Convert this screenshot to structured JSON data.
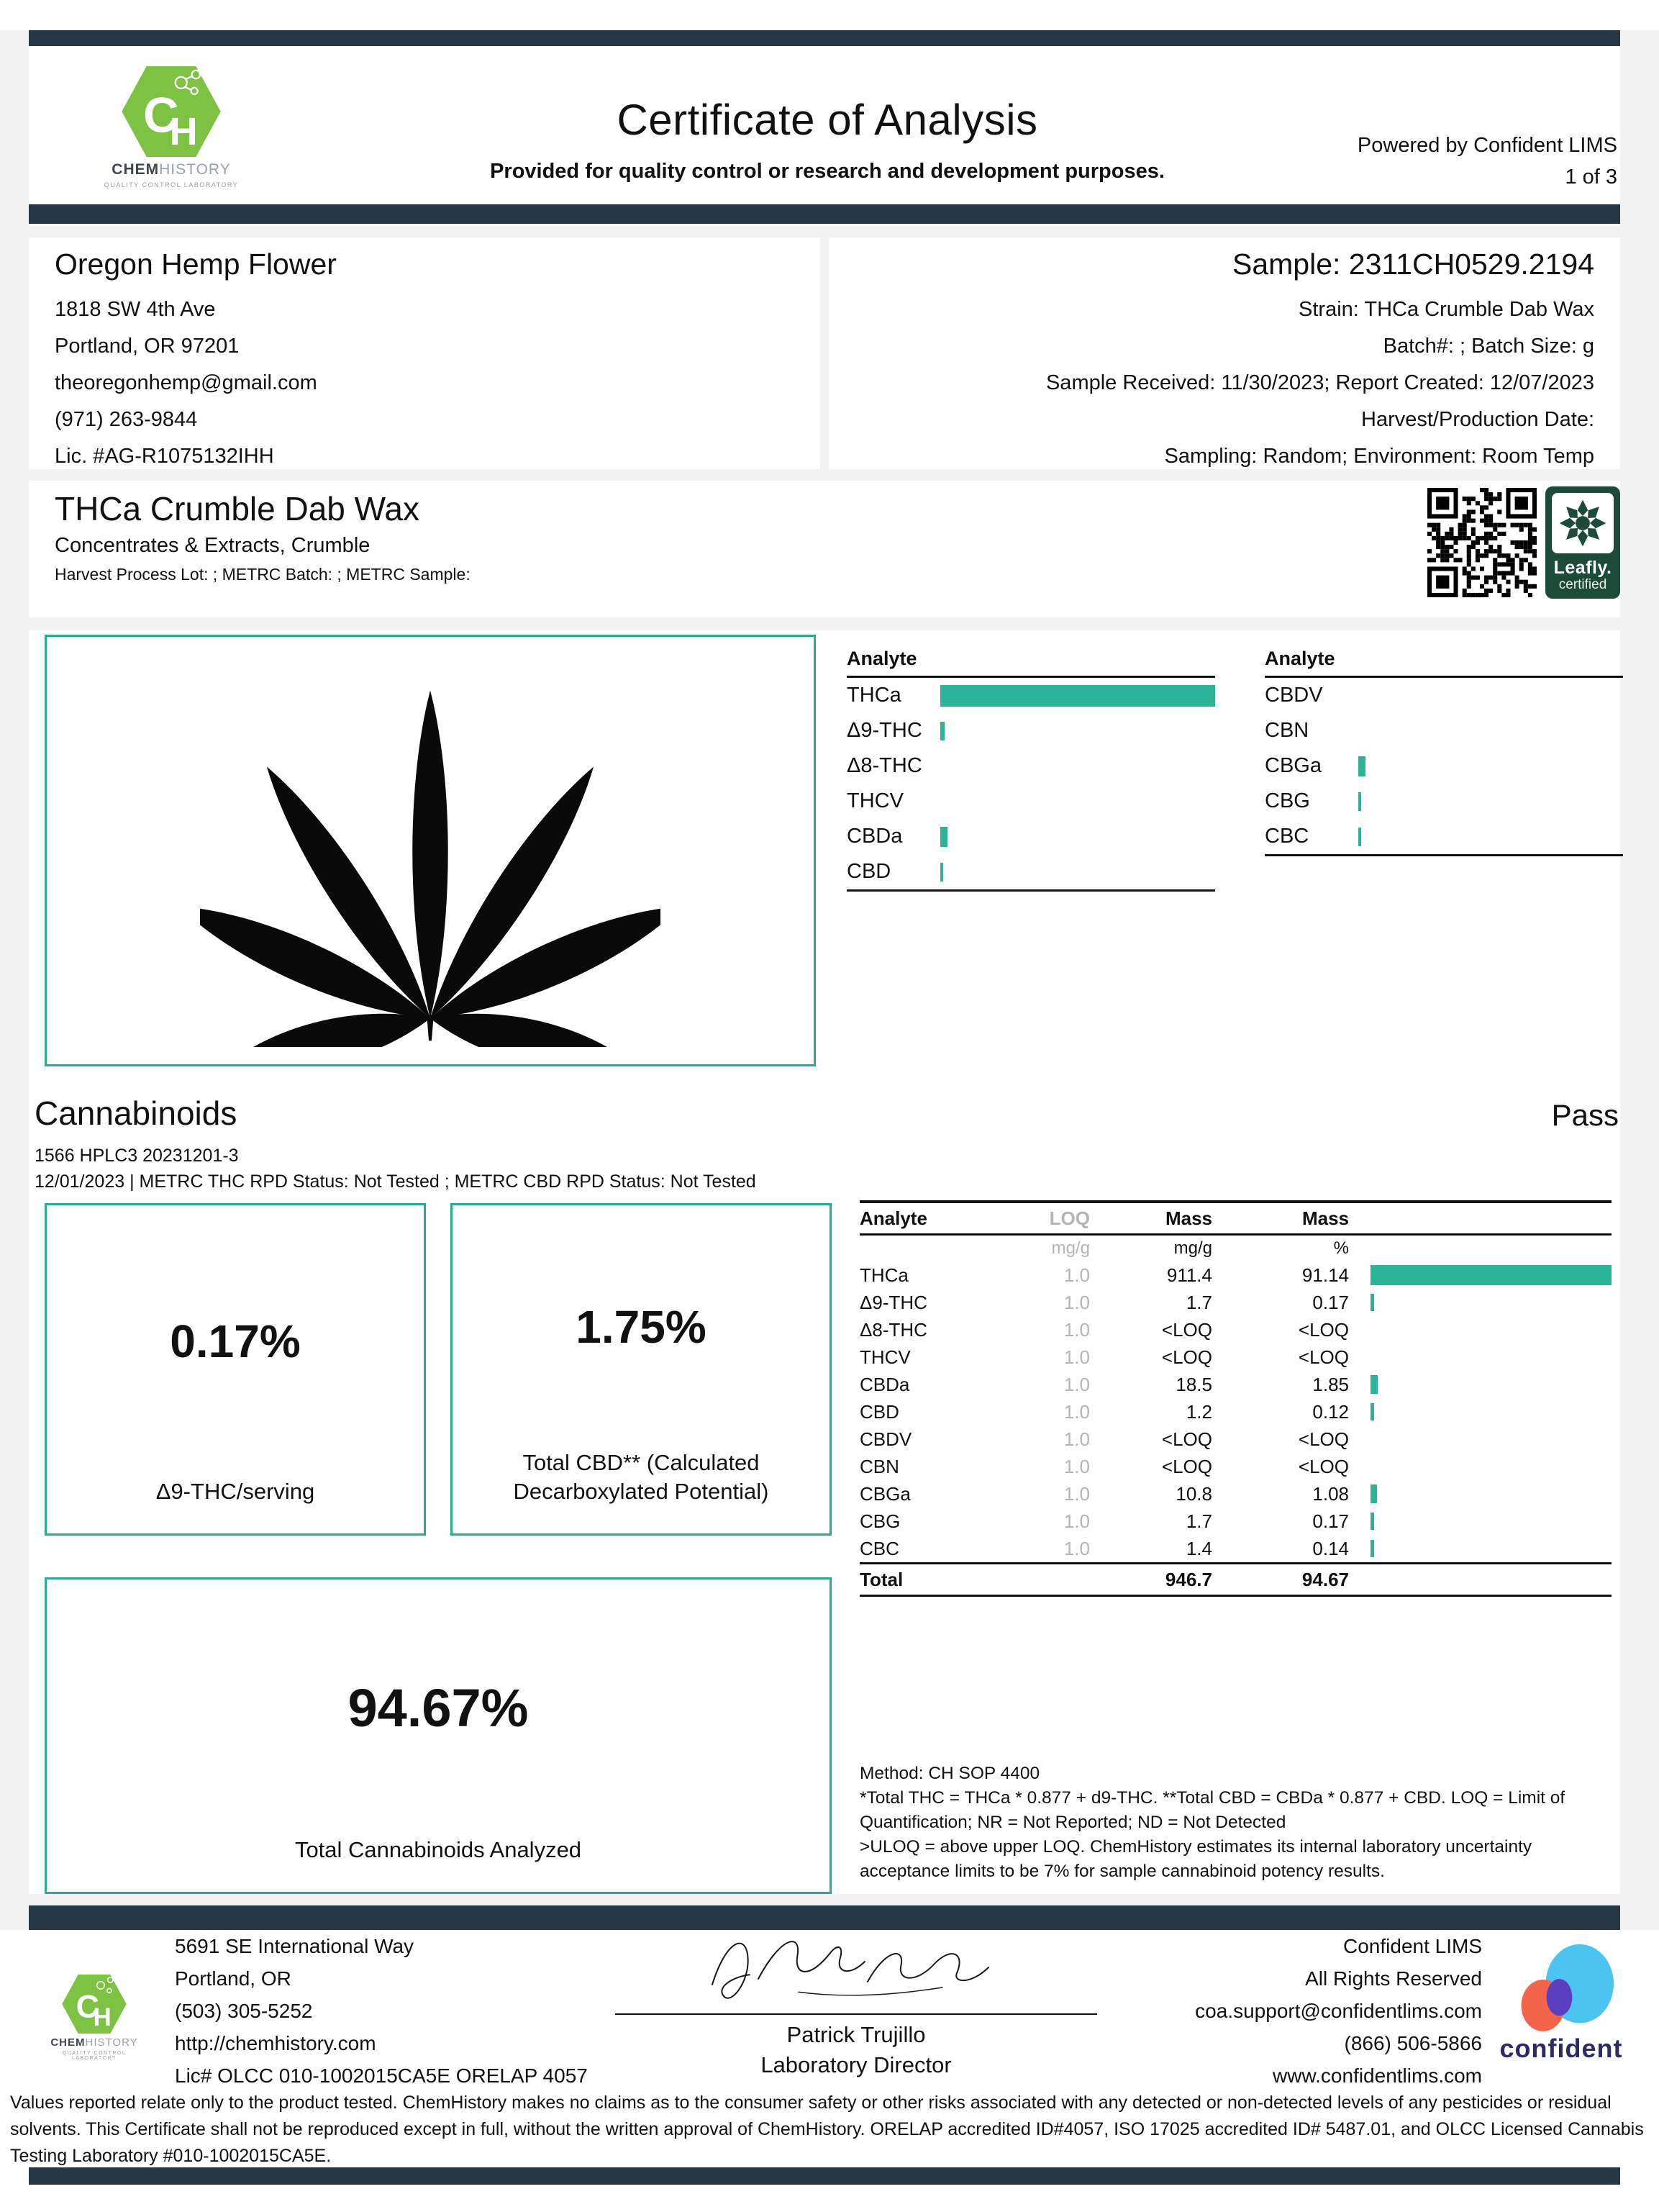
{
  "colors": {
    "accent_teal": "#2cb499",
    "navy_bar": "#273744",
    "chemhistory_green": "#7dc242",
    "leafly_green": "#1d4b39",
    "confident_blue": "#4cc4f2",
    "confident_orange": "#f2654a",
    "confident_purple": "#5b3fc0",
    "confident_navy": "#2e2a63",
    "muted_gray": "#b5b5b5"
  },
  "logo": {
    "ch": "CH",
    "chem": "CHEM",
    "history": "HISTORY",
    "tagline": "QUALITY CONTROL LABORATORY"
  },
  "header": {
    "title": "Certificate of Analysis",
    "subtitle": "Provided for quality control or research and development purposes.",
    "powered_by": "Powered by Confident LIMS",
    "page_no": "1 of 3"
  },
  "client": {
    "name": "Oregon Hemp Flower",
    "lines": [
      "1818 SW 4th Ave",
      "Portland, OR 97201",
      "theoregonhemp@gmail.com",
      "(971) 263-9844",
      "Lic. #AG-R1075132IHH"
    ]
  },
  "sample": {
    "id": "Sample: 2311CH0529.2194",
    "lines": [
      "Strain: THCa Crumble Dab Wax",
      "Batch#: ; Batch Size:  g",
      "Sample Received: 11/30/2023; Report Created: 12/07/2023",
      "Harvest/Production Date:",
      "Sampling: Random; Environment: Room Temp"
    ]
  },
  "product": {
    "name": "THCa Crumble Dab Wax",
    "category": "Concentrates & Extracts, Crumble",
    "metrc": "Harvest Process Lot: ; METRC Batch: ; METRC Sample:",
    "leafly": {
      "line1": "Leafly.",
      "line2": "certified"
    }
  },
  "analyte_summary": {
    "columns": [
      {
        "header": "Analyte",
        "rows": [
          {
            "name": "THCa",
            "pct": 100
          },
          {
            "name": "Δ9-THC",
            "pct": 1.6
          },
          {
            "name": "Δ8-THC",
            "pct": 0
          },
          {
            "name": "THCV",
            "pct": 0
          },
          {
            "name": "CBDa",
            "pct": 2.6
          },
          {
            "name": "CBD",
            "pct": 1.0
          }
        ]
      },
      {
        "header": "Analyte",
        "rows": [
          {
            "name": "CBDV",
            "pct": 0
          },
          {
            "name": "CBN",
            "pct": 0
          },
          {
            "name": "CBGa",
            "pct": 2.6
          },
          {
            "name": "CBG",
            "pct": 1.0
          },
          {
            "name": "CBC",
            "pct": 1.0
          }
        ]
      }
    ]
  },
  "cannabinoids": {
    "title": "Cannabinoids",
    "status": "Pass",
    "sub1": "1566 HPLC3 20231201-3",
    "sub2": "12/01/2023 | METRC THC RPD Status: Not Tested ; METRC CBD RPD Status: Not Tested",
    "boxes": [
      {
        "value": "0.17%",
        "caption": "Δ9-THC/serving"
      },
      {
        "value": "1.75%",
        "caption": "Total CBD** (Calculated Decarboxylated Potential)"
      },
      {
        "value": "94.67%",
        "caption": "Total Cannabinoids Analyzed"
      }
    ],
    "table": {
      "headers": [
        "Analyte",
        "LOQ",
        "Mass",
        "Mass"
      ],
      "units": [
        "",
        "mg/g",
        "mg/g",
        "%"
      ],
      "rows": [
        {
          "analyte": "THCa",
          "loq": "1.0",
          "mass_mgg": "911.4",
          "mass_pct": "91.14",
          "pct": 100
        },
        {
          "analyte": "Δ9-THC",
          "loq": "1.0",
          "mass_mgg": "1.7",
          "mass_pct": "0.17",
          "pct": 1.4
        },
        {
          "analyte": "Δ8-THC",
          "loq": "1.0",
          "mass_mgg": "<LOQ",
          "mass_pct": "<LOQ",
          "pct": 0
        },
        {
          "analyte": "THCV",
          "loq": "1.0",
          "mass_mgg": "<LOQ",
          "mass_pct": "<LOQ",
          "pct": 0
        },
        {
          "analyte": "CBDa",
          "loq": "1.0",
          "mass_mgg": "18.5",
          "mass_pct": "1.85",
          "pct": 3.0
        },
        {
          "analyte": "CBD",
          "loq": "1.0",
          "mass_mgg": "1.2",
          "mass_pct": "0.12",
          "pct": 1.4
        },
        {
          "analyte": "CBDV",
          "loq": "1.0",
          "mass_mgg": "<LOQ",
          "mass_pct": "<LOQ",
          "pct": 0
        },
        {
          "analyte": "CBN",
          "loq": "1.0",
          "mass_mgg": "<LOQ",
          "mass_pct": "<LOQ",
          "pct": 0
        },
        {
          "analyte": "CBGa",
          "loq": "1.0",
          "mass_mgg": "10.8",
          "mass_pct": "1.08",
          "pct": 2.6
        },
        {
          "analyte": "CBG",
          "loq": "1.0",
          "mass_mgg": "1.7",
          "mass_pct": "0.17",
          "pct": 1.4
        },
        {
          "analyte": "CBC",
          "loq": "1.0",
          "mass_mgg": "1.4",
          "mass_pct": "0.14",
          "pct": 1.4
        }
      ],
      "total": {
        "label": "Total",
        "mgg": "946.7",
        "pct": "94.67"
      }
    },
    "method": [
      "Method: CH SOP 4400",
      "*Total THC = THCa * 0.877 + d9-THC. **Total CBD = CBDa * 0.877 + CBD. LOQ = Limit of Quantification; NR = Not Reported; ND = Not Detected",
      ">ULOQ = above upper LOQ. ChemHistory estimates its internal laboratory uncertainty acceptance limits to be 7% for sample cannabinoid potency results."
    ]
  },
  "footer": {
    "address": [
      "5691 SE International Way",
      "Portland, OR",
      "(503) 305-5252",
      "http://chemhistory.com",
      "Lic# OLCC 010-1002015CA5E ORELAP 4057"
    ],
    "signer": {
      "name": "Patrick Trujillo",
      "title": "Laboratory Director"
    },
    "lims": [
      "Confident LIMS",
      "All Rights Reserved",
      "coa.support@confidentlims.com",
      "(866) 506-5866",
      "www.confidentlims.com"
    ],
    "confident_wordmark": "confident"
  },
  "disclaimer": "Values reported relate only to the product tested. ChemHistory makes no claims as to the consumer safety or other risks associated with any detected or non-detected levels of any pesticides or residual solvents. This Certificate shall not be reproduced except in full, without the written approval of ChemHistory.  ORELAP accredited ID#4057, ISO 17025 accredited ID# 5487.01, and OLCC Licensed Cannabis Testing Laboratory #010-1002015CA5E."
}
